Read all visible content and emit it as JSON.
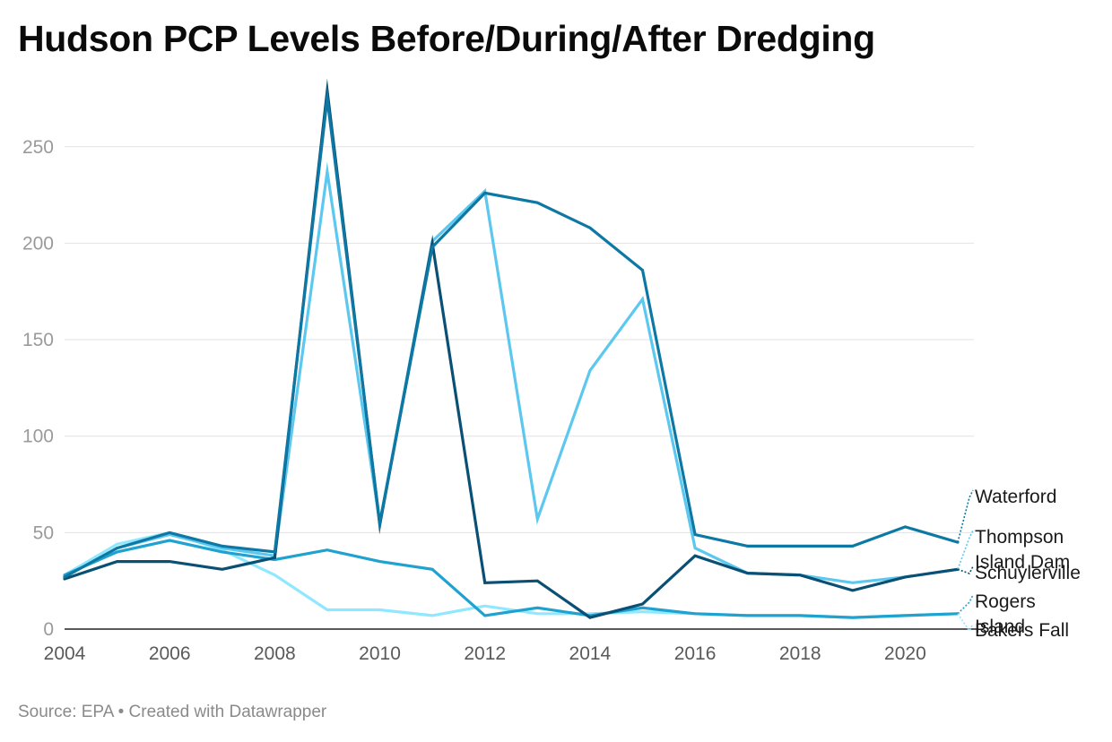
{
  "title": "Hudson PCP Levels Before/During/After Dredging",
  "footer": {
    "source": "Source: EPA",
    "separator": "•",
    "credit": "Created with Datawrapper"
  },
  "chart_data": {
    "type": "line",
    "title": "Hudson PCP Levels Before/During/After Dredging",
    "xlabel": "",
    "ylabel": "",
    "x": [
      2004,
      2005,
      2006,
      2007,
      2008,
      2009,
      2010,
      2011,
      2012,
      2013,
      2014,
      2015,
      2016,
      2017,
      2018,
      2019,
      2020,
      2021
    ],
    "xlim": [
      2004,
      2021
    ],
    "ylim": [
      0,
      280
    ],
    "yticks": [
      0,
      50,
      100,
      150,
      200,
      250
    ],
    "xticks": [
      2004,
      2006,
      2008,
      2010,
      2012,
      2014,
      2016,
      2018,
      2020
    ],
    "grid": true,
    "legend": "direct labels at right",
    "series": [
      {
        "name": "Bakers Fall",
        "color": "#8fe8ff",
        "values": [
          28,
          44,
          50,
          41,
          28,
          10,
          10,
          7,
          12,
          8,
          8,
          9,
          8,
          7,
          7,
          6,
          7,
          8
        ]
      },
      {
        "name": "Rogers Island",
        "color": "#1fa2d0",
        "values": [
          28,
          40,
          46,
          40,
          36,
          41,
          35,
          31,
          7,
          11,
          7,
          11,
          8,
          7,
          7,
          6,
          7,
          8
        ]
      },
      {
        "name": "Thompson Island Dam",
        "color": "#5cc8ef",
        "values": [
          27,
          42,
          49,
          42,
          38,
          237,
          55,
          201,
          227,
          57,
          134,
          171,
          42,
          29,
          28,
          24,
          27,
          31
        ]
      },
      {
        "name": "Schuylerville",
        "color": "#0a4f74",
        "values": [
          26,
          35,
          35,
          31,
          37,
          279,
          54,
          200,
          24,
          25,
          6,
          13,
          38,
          29,
          28,
          20,
          27,
          31
        ]
      },
      {
        "name": "Waterford",
        "color": "#0e78a5",
        "values": [
          27,
          42,
          50,
          43,
          40,
          275,
          55,
          198,
          226,
          221,
          208,
          186,
          49,
          43,
          43,
          43,
          53,
          45
        ]
      }
    ],
    "labels": [
      {
        "series": "Waterford",
        "lines": [
          "Waterford"
        ]
      },
      {
        "series": "Thompson Island Dam",
        "lines": [
          "Thompson",
          "Island Dam"
        ]
      },
      {
        "series": "Schuylerville",
        "lines": [
          "Schuylerville"
        ]
      },
      {
        "series": "Rogers Island",
        "lines": [
          "Rogers",
          "Island"
        ]
      },
      {
        "series": "Bakers Fall",
        "lines": [
          "Bakers Fall"
        ]
      }
    ]
  }
}
